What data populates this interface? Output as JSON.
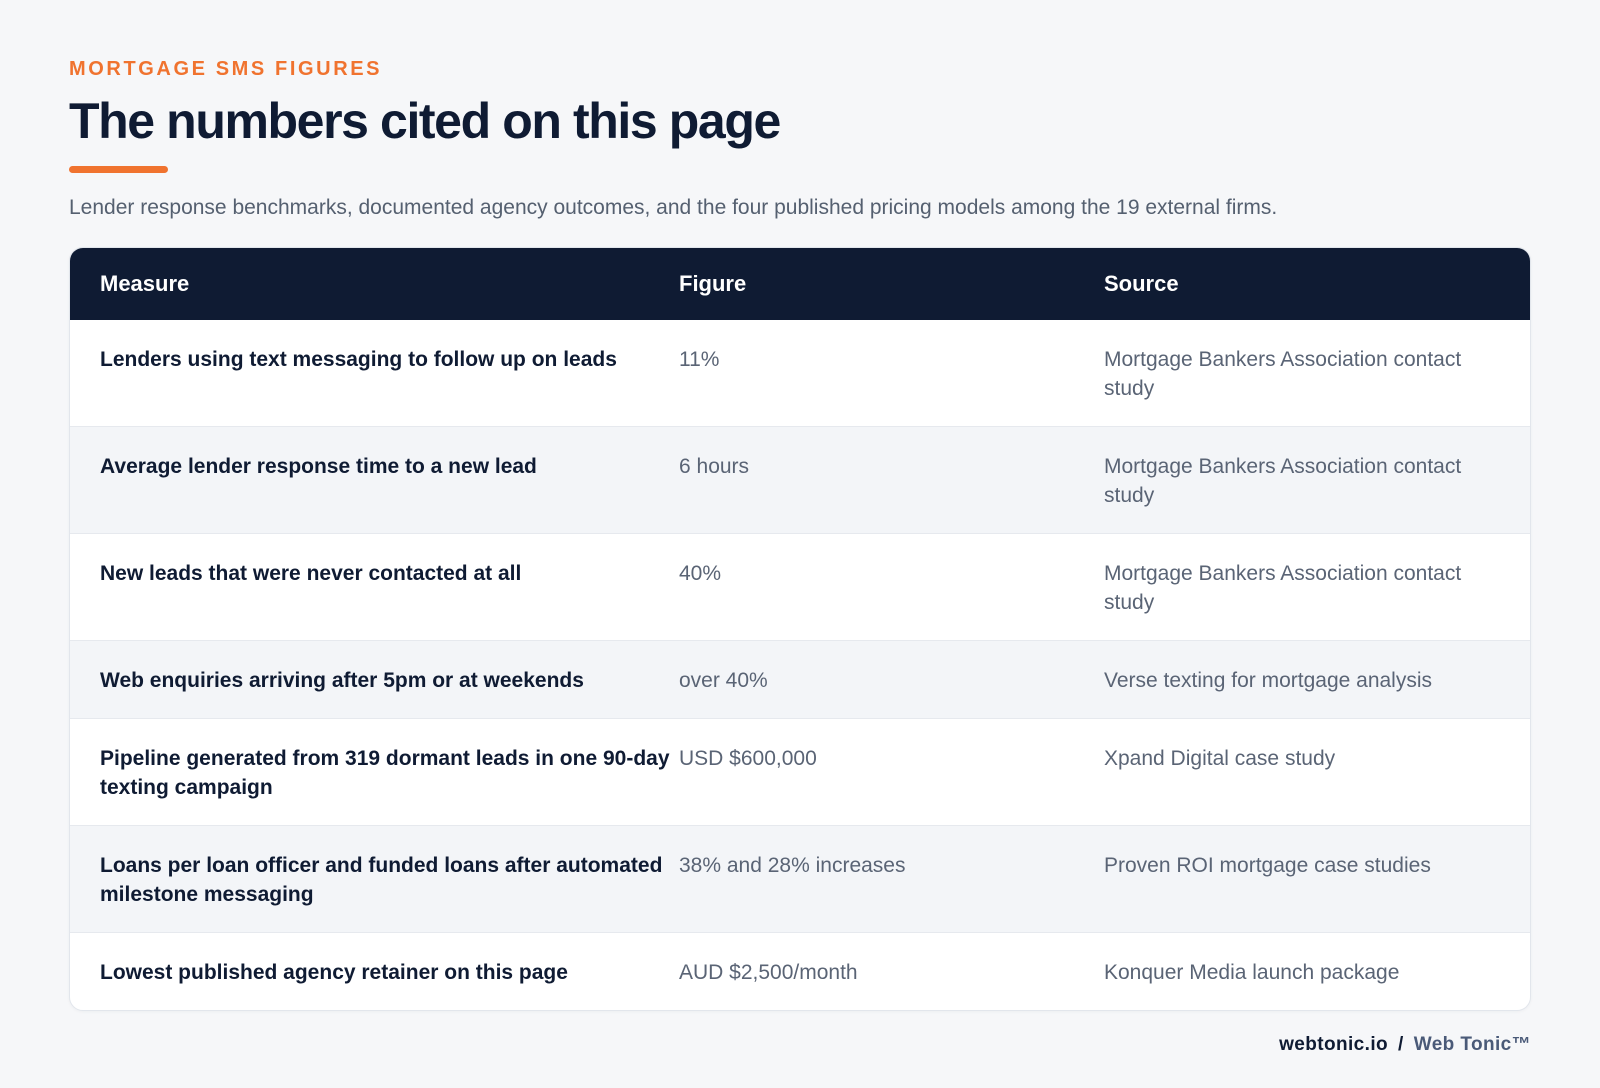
{
  "header": {
    "eyebrow": "MORTGAGE SMS FIGURES",
    "title": "The numbers cited on this page",
    "subtitle": "Lender response benchmarks, documented agency outcomes, and the four published pricing models among the 19 external firms."
  },
  "table": {
    "columns": [
      "Measure",
      "Figure",
      "Source"
    ],
    "rows": [
      {
        "measure": "Lenders using text messaging to follow up on leads",
        "figure": "11%",
        "source": "Mortgage Bankers Association contact study"
      },
      {
        "measure": "Average lender response time to a new lead",
        "figure": "6 hours",
        "source": "Mortgage Bankers Association contact study"
      },
      {
        "measure": "New leads that were never contacted at all",
        "figure": "40%",
        "source": "Mortgage Bankers Association contact study"
      },
      {
        "measure": "Web enquiries arriving after 5pm or at weekends",
        "figure": "over 40%",
        "source": "Verse texting for mortgage analysis"
      },
      {
        "measure": "Pipeline generated from 319 dormant leads in one 90-day texting campaign",
        "figure": "USD $600,000",
        "source": "Xpand Digital case study"
      },
      {
        "measure": "Loans per loan officer and funded loans after automated milestone messaging",
        "figure": "38% and 28% increases",
        "source": "Proven ROI mortgage case studies"
      },
      {
        "measure": "Lowest published agency retainer on this page",
        "figure": "AUD $2,500/month",
        "source": "Konquer Media launch package"
      }
    ]
  },
  "footer": {
    "domain": "webtonic.io",
    "separator": "/",
    "brand": "Web Tonic™"
  },
  "colors": {
    "accent": "#f0732f",
    "navy": "#0f1b33",
    "muted_text": "#5a6475",
    "background": "#f6f7f9"
  }
}
